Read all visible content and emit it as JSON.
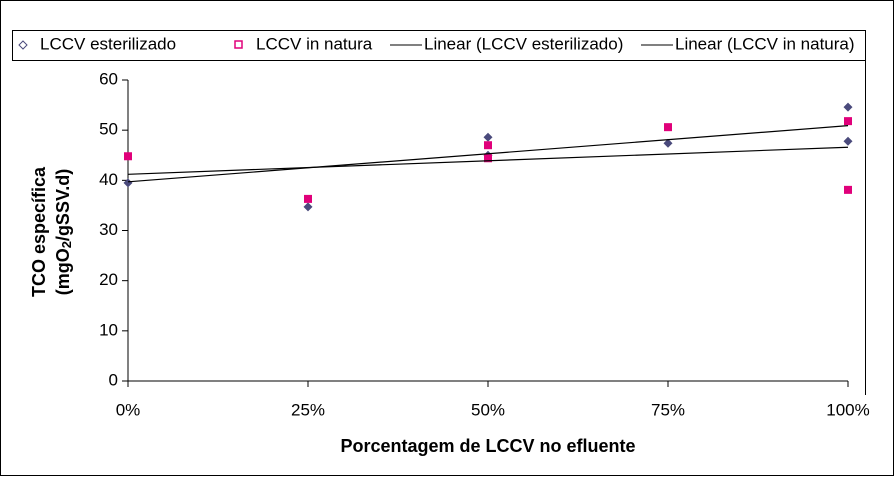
{
  "chart_data": {
    "type": "scatter",
    "xlabel": "Porcentagem de LCCV no efluente",
    "ylabel_line1": "TCO específica",
    "ylabel_line2": [
      "(mgO",
      "2",
      "/gSSV.d)"
    ],
    "xlim": [
      0,
      100
    ],
    "xticks": [
      {
        "value": 0,
        "label": "0%"
      },
      {
        "value": 25,
        "label": "25%"
      },
      {
        "value": 50,
        "label": "50%"
      },
      {
        "value": 75,
        "label": "75%"
      },
      {
        "value": 100,
        "label": "100%"
      }
    ],
    "ylim": [
      0,
      60
    ],
    "yticks": [
      0,
      10,
      20,
      30,
      40,
      50,
      60
    ],
    "series": [
      {
        "name": "LCCV esterilizado",
        "marker": "diamond",
        "color": "#4a4a7c",
        "x": [
          0,
          25,
          50,
          50,
          75,
          100,
          100
        ],
        "values": [
          39.5,
          34.7,
          48.6,
          45.0,
          47.4,
          54.6,
          47.8
        ]
      },
      {
        "name": "LCCV in natura",
        "marker": "square",
        "color": "#e0007a",
        "x": [
          0,
          25,
          50,
          50,
          75,
          100,
          100
        ],
        "values": [
          44.8,
          36.3,
          47.0,
          44.4,
          50.6,
          51.8,
          38.1
        ]
      },
      {
        "name": "Linear (LCCV esterilizado)",
        "marker": "line",
        "color": "#000000",
        "x": [
          0,
          100
        ],
        "values": [
          39.7,
          50.9
        ]
      },
      {
        "name": "Linear (LCCV in natura)",
        "marker": "line",
        "color": "#000000",
        "x": [
          0,
          100
        ],
        "values": [
          41.2,
          46.6
        ]
      }
    ]
  }
}
